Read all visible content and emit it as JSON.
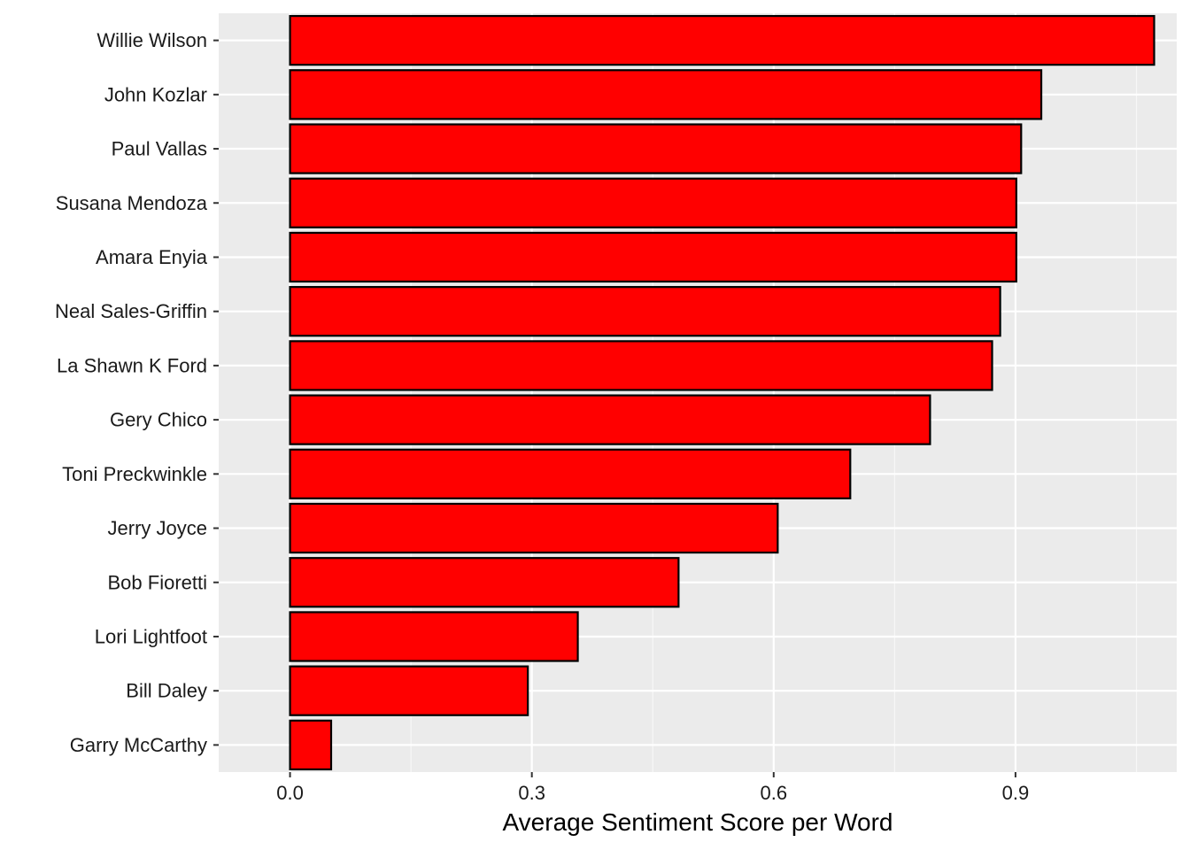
{
  "chart_data": {
    "type": "bar",
    "orientation": "horizontal",
    "title": "",
    "xlabel": "Average Sentiment Score per Word",
    "ylabel": "",
    "xlim": [
      -0.0885,
      1.1
    ],
    "xticks": [
      0.0,
      0.3,
      0.6,
      0.9
    ],
    "xtick_labels": [
      "0.0",
      "0.3",
      "0.6",
      "0.9"
    ],
    "grid": true,
    "legend": "none",
    "categories": [
      "Willie Wilson",
      "John Kozlar",
      "Paul Vallas",
      "Susana Mendoza",
      "Amara Enyia",
      "Neal Sales-Griffin",
      "La Shawn K Ford",
      "Gery Chico",
      "Toni Preckwinkle",
      "Jerry Joyce",
      "Bob Fioretti",
      "Lori Lightfoot",
      "Bill Daley",
      "Garry McCarthy"
    ],
    "values": [
      1.072,
      0.932,
      0.907,
      0.901,
      0.901,
      0.881,
      0.871,
      0.794,
      0.695,
      0.605,
      0.482,
      0.357,
      0.295,
      0.051
    ],
    "colors": {
      "bar_fill": "#ff0000",
      "bar_stroke": "#000000",
      "panel_bg": "#ebebeb",
      "grid_major": "#ffffff",
      "grid_minor": "#f7f7f7",
      "tick_color": "#333333"
    }
  }
}
